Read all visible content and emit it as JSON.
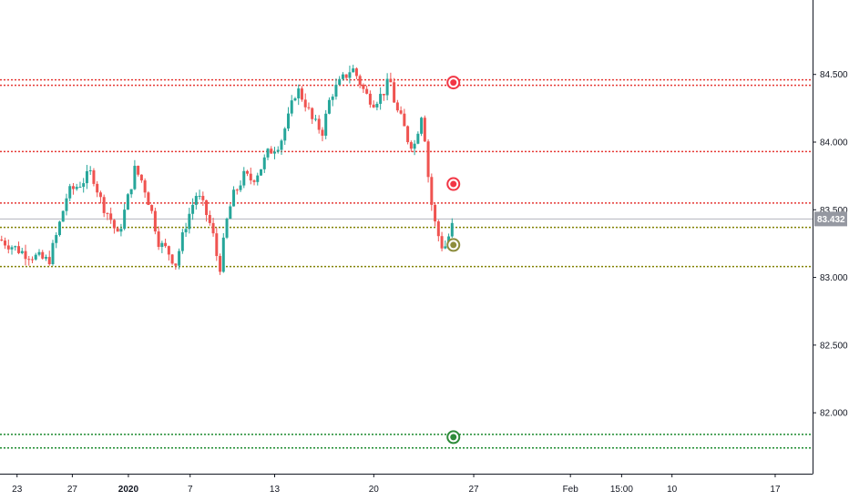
{
  "chart_data": {
    "type": "candlestick",
    "y_axis": {
      "range": [
        81.55,
        85.05
      ],
      "ticks": [
        {
          "value": 84.5,
          "label": "84.500"
        },
        {
          "value": 84.0,
          "label": "84.000"
        },
        {
          "value": 83.5,
          "label": "83.500"
        },
        {
          "value": 83.0,
          "label": "83.000"
        },
        {
          "value": 82.5,
          "label": "82.500"
        },
        {
          "value": 82.0,
          "label": "82.000"
        }
      ]
    },
    "x_axis": {
      "range": [
        0,
        100
      ],
      "ticks": [
        {
          "x": 2.1,
          "label": "23"
        },
        {
          "x": 8.9,
          "label": "27"
        },
        {
          "x": 15.8,
          "label": "2020"
        },
        {
          "x": 23.4,
          "label": "7"
        },
        {
          "x": 33.8,
          "label": "13"
        },
        {
          "x": 46.0,
          "label": "20"
        },
        {
          "x": 58.3,
          "label": "27"
        },
        {
          "x": 70.2,
          "label": "Feb"
        },
        {
          "x": 76.5,
          "label": "15:00"
        },
        {
          "x": 82.7,
          "label": "10"
        },
        {
          "x": 95.4,
          "label": "17"
        }
      ]
    },
    "last_price": {
      "value": 83.432,
      "label": "83.432",
      "color": "#b2b5be"
    },
    "horizontal_levels": [
      {
        "value": 84.46,
        "color": "#e53935"
      },
      {
        "value": 84.42,
        "color": "#e53935"
      },
      {
        "value": 83.93,
        "color": "#e53935"
      },
      {
        "value": 83.55,
        "color": "#e53935"
      },
      {
        "value": 83.37,
        "color": "#808000"
      },
      {
        "value": 83.08,
        "color": "#808000"
      },
      {
        "value": 81.84,
        "color": "#1b8a2e"
      },
      {
        "value": 81.74,
        "color": "#1b8a2e"
      }
    ],
    "markers": [
      {
        "x": 55.8,
        "value": 84.44,
        "color": "#f23645"
      },
      {
        "x": 55.8,
        "value": 83.69,
        "color": "#f23645"
      },
      {
        "x": 55.8,
        "value": 83.24,
        "color": "#8c8c3c"
      },
      {
        "x": 55.8,
        "value": 81.82,
        "color": "#2e8b3a"
      }
    ],
    "colors": {
      "up": "#26a69a",
      "down": "#ef5350",
      "grid": "#131722",
      "axis_text": "#131722"
    },
    "candle_anchors": [
      [
        0.0,
        83.28
      ],
      [
        3.0,
        83.18
      ],
      [
        6.0,
        83.12
      ],
      [
        7.0,
        83.32
      ],
      [
        8.3,
        83.62
      ],
      [
        10.0,
        83.7
      ],
      [
        11.3,
        83.78
      ],
      [
        12.5,
        83.55
      ],
      [
        13.5,
        83.45
      ],
      [
        14.5,
        83.3
      ],
      [
        15.6,
        83.55
      ],
      [
        16.6,
        83.8
      ],
      [
        17.6,
        83.7
      ],
      [
        18.6,
        83.5
      ],
      [
        19.6,
        83.25
      ],
      [
        20.6,
        83.2
      ],
      [
        21.6,
        83.1
      ],
      [
        23.0,
        83.42
      ],
      [
        24.2,
        83.62
      ],
      [
        25.2,
        83.5
      ],
      [
        26.1,
        83.35
      ],
      [
        27.0,
        83.05
      ],
      [
        28.0,
        83.45
      ],
      [
        28.7,
        83.6
      ],
      [
        30.0,
        83.75
      ],
      [
        31.0,
        83.72
      ],
      [
        32.0,
        83.8
      ],
      [
        33.0,
        83.92
      ],
      [
        34.5,
        84.0
      ],
      [
        35.5,
        84.18
      ],
      [
        36.5,
        84.4
      ],
      [
        37.5,
        84.3
      ],
      [
        38.5,
        84.15
      ],
      [
        39.7,
        84.08
      ],
      [
        40.7,
        84.35
      ],
      [
        42.0,
        84.45
      ],
      [
        43.3,
        84.55
      ],
      [
        44.0,
        84.48
      ],
      [
        45.0,
        84.35
      ],
      [
        46.0,
        84.3
      ],
      [
        47.0,
        84.35
      ],
      [
        48.0,
        84.46
      ],
      [
        48.7,
        84.25
      ],
      [
        49.5,
        84.15
      ],
      [
        50.3,
        84.0
      ],
      [
        51.0,
        83.98
      ],
      [
        52.0,
        84.25
      ],
      [
        52.6,
        83.8
      ],
      [
        53.3,
        83.45
      ],
      [
        54.0,
        83.3
      ],
      [
        54.6,
        83.2
      ],
      [
        55.2,
        83.3
      ],
      [
        56.0,
        83.44
      ]
    ]
  }
}
